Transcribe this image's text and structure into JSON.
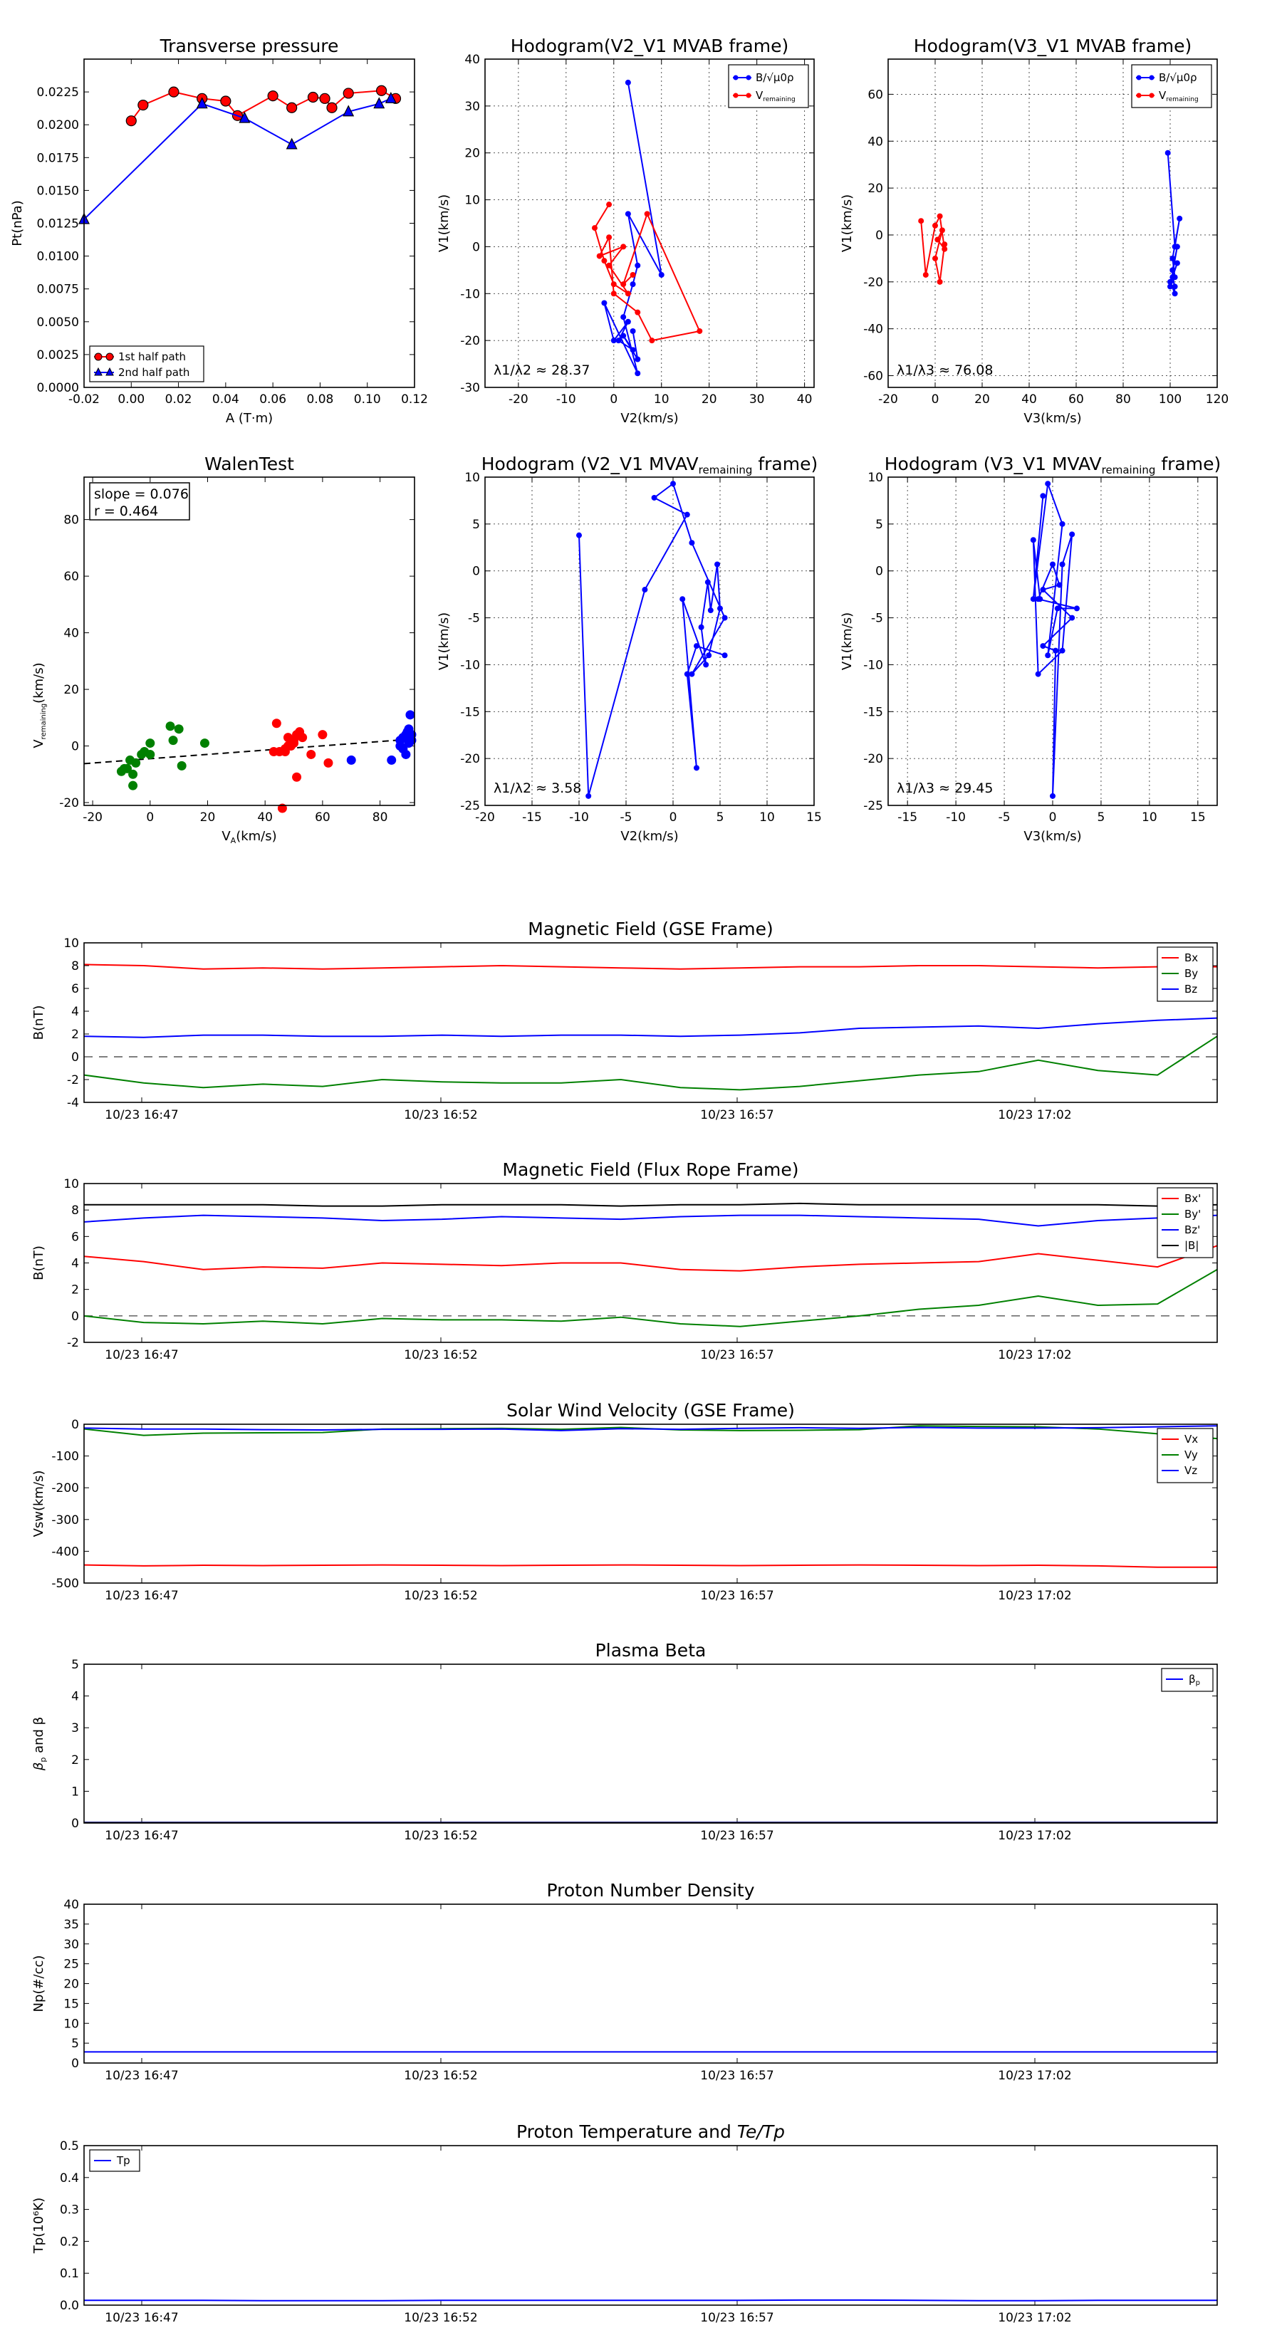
{
  "chart_data": [
    {
      "type": "scatter",
      "title": "Transverse pressure",
      "xlabel": "A (T·m)",
      "ylabel": "Pt(nPa)",
      "xlim": [
        -0.02,
        0.12
      ],
      "ylim": [
        0,
        0.025
      ],
      "xticks": [
        "-0.02",
        "0.00",
        "0.02",
        "0.04",
        "0.06",
        "0.08",
        "0.10",
        "0.12"
      ],
      "yticks": [
        "0.0000",
        "0.0025",
        "0.0050",
        "0.0075",
        "0.0100",
        "0.0125",
        "0.0150",
        "0.0175",
        "0.0200",
        "0.0225"
      ],
      "legend": "lower-left",
      "series": [
        {
          "name": "1st half path",
          "color": "#ff0000",
          "marker": "circle",
          "x": [
            0.0,
            0.005,
            0.018,
            0.03,
            0.04,
            0.045,
            0.06,
            0.068,
            0.077,
            0.082,
            0.085,
            0.092,
            0.106,
            0.112
          ],
          "y": [
            0.0203,
            0.0215,
            0.0225,
            0.022,
            0.0218,
            0.0207,
            0.0222,
            0.0213,
            0.0221,
            0.022,
            0.0213,
            0.0224,
            0.0226,
            0.022
          ]
        },
        {
          "name": "2nd half path",
          "color": "#0000ff",
          "marker": "triangle",
          "x": [
            -0.02,
            0.03,
            0.048,
            0.068,
            0.092,
            0.105,
            0.11
          ],
          "y": [
            0.0128,
            0.0216,
            0.0205,
            0.0185,
            0.021,
            0.0216,
            0.022
          ]
        }
      ]
    },
    {
      "type": "line",
      "title": "Hodogram(V2_V1 MVAB frame)",
      "xlabel": "V2(km/s)",
      "ylabel": "V1(km/s)",
      "xlim": [
        -27,
        42
      ],
      "ylim": [
        -30,
        40
      ],
      "xticks": [
        -20,
        -10,
        0,
        10,
        20,
        30,
        40
      ],
      "yticks": [
        -30,
        -20,
        -10,
        0,
        10,
        20,
        30,
        40
      ],
      "annotation": "λ1/λ2 ≈ 28.37",
      "legend": "top-right",
      "series": [
        {
          "name": "B/√μ0ρ",
          "color": "#0000ff",
          "x": [
            3,
            10,
            3,
            5,
            4,
            2,
            5,
            -2,
            0,
            3,
            1,
            4,
            2,
            5,
            4
          ],
          "y": [
            35,
            -6,
            7,
            -4,
            -8,
            -15,
            -27,
            -12,
            -20,
            -16,
            -20,
            -22,
            -19,
            -24,
            -18
          ]
        },
        {
          "name": "Vremaining",
          "color": "#ff0000",
          "x": [
            -1,
            -4,
            -2,
            0,
            3,
            -1,
            2,
            -3,
            -1,
            0,
            5,
            8,
            18,
            7,
            2,
            4
          ],
          "y": [
            9,
            4,
            -3,
            -8,
            -10,
            -4,
            0,
            -2,
            2,
            -10,
            -14,
            -20,
            -18,
            7,
            -8,
            -6
          ]
        }
      ]
    },
    {
      "type": "line",
      "title": "Hodogram(V3_V1 MVAB frame)",
      "xlabel": "V3(km/s)",
      "ylabel": "V1(km/s)",
      "xlim": [
        -20,
        120
      ],
      "ylim": [
        -65,
        75
      ],
      "xticks": [
        -20,
        0,
        20,
        40,
        60,
        80,
        100,
        120
      ],
      "yticks": [
        -60,
        -40,
        -20,
        0,
        20,
        40,
        60
      ],
      "annotation": "λ1/λ3 ≈ 76.08",
      "legend": "top-right",
      "series": [
        {
          "name": "B/√μ0ρ",
          "color": "#0000ff",
          "x": [
            99,
            102,
            104,
            101,
            102,
            100,
            103,
            101,
            102,
            100,
            103,
            101,
            102
          ],
          "y": [
            35,
            -5,
            7,
            -10,
            -18,
            -22,
            -5,
            -15,
            -25,
            -20,
            -12,
            -18,
            -22
          ]
        },
        {
          "name": "Vremaining",
          "color": "#ff0000",
          "x": [
            -6,
            -4,
            0,
            2,
            4,
            1,
            3,
            0,
            2,
            4
          ],
          "y": [
            6,
            -17,
            4,
            8,
            -6,
            -2,
            2,
            -10,
            -20,
            -4
          ]
        }
      ]
    },
    {
      "type": "scatter",
      "title": "WalenTest",
      "xlabel": "VA(km/s)",
      "ylabel": "Vremaining(km/s)",
      "xlim": [
        -23,
        92
      ],
      "ylim": [
        -21,
        95
      ],
      "xticks": [
        -20,
        0,
        20,
        40,
        60,
        80
      ],
      "yticks": [
        -20,
        0,
        20,
        40,
        60,
        80
      ],
      "annotation": [
        "slope = 0.076",
        "r = 0.464"
      ],
      "fit_line": {
        "slope": 0.076,
        "intercept": -4.5
      },
      "series": [
        {
          "color": "#008000",
          "x": [
            -10,
            -8,
            -6,
            -5,
            -7,
            -3,
            0,
            -2,
            -9,
            0,
            7,
            10,
            8,
            11,
            19,
            -6
          ],
          "y": [
            -9,
            -8,
            -10,
            -6,
            -5,
            -3,
            -3,
            -2,
            -8,
            1,
            7,
            6,
            2,
            -7,
            1,
            -14
          ]
        },
        {
          "color": "#ff0000",
          "x": [
            44,
            45,
            47,
            48,
            49,
            50,
            51,
            52,
            48,
            47,
            53,
            56,
            60,
            62,
            46,
            51,
            43,
            50,
            49
          ],
          "y": [
            8,
            -2,
            -1,
            0,
            1,
            2,
            4,
            5,
            3,
            -2,
            3,
            -3,
            4,
            -6,
            -22,
            -11,
            -2,
            1,
            0
          ]
        },
        {
          "color": "#0000ff",
          "x": [
            70,
            84,
            87,
            88,
            89,
            89.5,
            90,
            90.5,
            91,
            88,
            89,
            90,
            91,
            87
          ],
          "y": [
            -5,
            -5,
            2,
            3,
            4,
            5,
            6,
            11,
            2,
            -1,
            -3,
            1,
            4,
            0
          ]
        }
      ]
    },
    {
      "type": "line",
      "title": "Hodogram (V2_V1 MVAV",
      "title_sub": "remaining",
      "title_suffix": " frame)",
      "xlabel": "V2(km/s)",
      "ylabel": "V1(km/s)",
      "xlim": [
        -20,
        15
      ],
      "ylim": [
        -25,
        10
      ],
      "xticks": [
        -20,
        -15,
        -10,
        -5,
        0,
        5,
        10,
        15
      ],
      "yticks": [
        -25,
        -20,
        -15,
        -10,
        -5,
        0,
        5,
        10
      ],
      "annotation": "λ1/λ2 ≈ 3.58",
      "series": [
        {
          "color": "#0000ff",
          "x": [
            -10,
            -9,
            -3,
            1.5,
            -2,
            0,
            2,
            5.5,
            2,
            3.8,
            5,
            4.7,
            4,
            3.7,
            3,
            3.5,
            1,
            2.5,
            1.5,
            2.5,
            5.5
          ],
          "y": [
            3.8,
            -24,
            -2,
            6,
            7.8,
            9.3,
            3,
            -5,
            -11,
            -9,
            -4,
            0.7,
            -4.2,
            -1.2,
            -6,
            -10,
            -3,
            -21,
            -11,
            -8,
            -9
          ]
        }
      ]
    },
    {
      "type": "line",
      "title": "Hodogram (V3_V1 MVAV",
      "title_sub": "remaining",
      "title_suffix": " frame)",
      "xlabel": "V3(km/s)",
      "ylabel": "V1(km/s)",
      "xlim": [
        -17,
        17
      ],
      "ylim": [
        -25,
        10
      ],
      "xticks": [
        -15,
        -10,
        -5,
        0,
        5,
        10,
        15
      ],
      "yticks": [
        -25,
        -20,
        -15,
        -10,
        -5,
        0,
        5,
        10
      ],
      "annotation": "λ1/λ3 ≈ 29.45",
      "series": [
        {
          "color": "#0000ff",
          "x": [
            -1,
            -2,
            -0.5,
            1,
            -0.5,
            0.5,
            2.5,
            -1.5,
            0,
            0.7,
            -1,
            2,
            -1,
            0.3,
            0,
            1,
            2,
            1,
            -1.5,
            -2,
            -1.3
          ],
          "y": [
            8,
            -3,
            9.3,
            5,
            -9,
            -4,
            -4,
            -3,
            0.7,
            -1.5,
            -2,
            -5,
            -8,
            -8.5,
            -24,
            0.7,
            3.9,
            -8.5,
            -11,
            3.3,
            -3
          ]
        }
      ]
    },
    {
      "type": "line",
      "title": "Magnetic Field (GSE Frame)",
      "ylabel": "B(nT)",
      "ylim": [
        -4,
        10
      ],
      "yticks": [
        -4,
        -2,
        0,
        2,
        4,
        6,
        8,
        10
      ],
      "xticks": [
        "10/23 16:47",
        "10/23 16:52",
        "10/23 16:57",
        "10/23 17:02"
      ],
      "xlim_min": [
        0,
        19
      ],
      "legend": "top-right",
      "series": [
        {
          "name": "Bx",
          "color": "#ff0000",
          "values": [
            8.1,
            8.0,
            7.7,
            7.8,
            7.7,
            7.8,
            7.9,
            8.0,
            7.9,
            7.8,
            7.7,
            7.8,
            7.9,
            7.9,
            8.0,
            8.0,
            7.9,
            7.8,
            7.9,
            7.9
          ]
        },
        {
          "name": "By",
          "color": "#008000",
          "values": [
            -1.6,
            -2.3,
            -2.7,
            -2.4,
            -2.6,
            -2.0,
            -2.2,
            -2.3,
            -2.3,
            -2.0,
            -2.7,
            -2.9,
            -2.6,
            -2.1,
            -1.6,
            -1.3,
            -0.3,
            -1.2,
            -1.6,
            1.8
          ]
        },
        {
          "name": "Bz",
          "color": "#0000ff",
          "values": [
            1.8,
            1.7,
            1.9,
            1.9,
            1.8,
            1.8,
            1.9,
            1.8,
            1.9,
            1.9,
            1.8,
            1.9,
            2.1,
            2.5,
            2.6,
            2.7,
            2.5,
            2.9,
            3.2,
            3.4
          ]
        }
      ]
    },
    {
      "type": "line",
      "title": "Magnetic Field (Flux Rope Frame)",
      "ylabel": "B(nT)",
      "ylim": [
        -2,
        10
      ],
      "yticks": [
        -2,
        0,
        2,
        4,
        6,
        8,
        10
      ],
      "xticks": [
        "10/23 16:47",
        "10/23 16:52",
        "10/23 16:57",
        "10/23 17:02"
      ],
      "legend": "top-right",
      "series": [
        {
          "name": "Bx'",
          "color": "#ff0000",
          "values": [
            4.5,
            4.1,
            3.5,
            3.7,
            3.6,
            4.0,
            3.9,
            3.8,
            4.0,
            4.0,
            3.5,
            3.4,
            3.7,
            3.9,
            4.0,
            4.1,
            4.7,
            4.2,
            3.7,
            5.3
          ]
        },
        {
          "name": "By'",
          "color": "#008000",
          "values": [
            0.0,
            -0.5,
            -0.6,
            -0.4,
            -0.6,
            -0.2,
            -0.3,
            -0.3,
            -0.4,
            -0.1,
            -0.6,
            -0.8,
            -0.4,
            0.0,
            0.5,
            0.8,
            1.5,
            0.8,
            0.9,
            3.5
          ]
        },
        {
          "name": "Bz'",
          "color": "#0000ff",
          "values": [
            7.1,
            7.4,
            7.6,
            7.5,
            7.4,
            7.2,
            7.3,
            7.5,
            7.4,
            7.3,
            7.5,
            7.6,
            7.6,
            7.5,
            7.4,
            7.3,
            6.8,
            7.2,
            7.4,
            7.6
          ]
        },
        {
          "name": "|B|",
          "color": "#000000",
          "values": [
            8.4,
            8.4,
            8.4,
            8.4,
            8.3,
            8.3,
            8.4,
            8.4,
            8.4,
            8.3,
            8.4,
            8.4,
            8.5,
            8.4,
            8.4,
            8.4,
            8.4,
            8.4,
            8.3,
            8.4
          ]
        }
      ]
    },
    {
      "type": "line",
      "title": "Solar Wind Velocity (GSE Frame)",
      "ylabel": "Vsw(km/s)",
      "ylim": [
        -500,
        0
      ],
      "yticks": [
        -500,
        -400,
        -300,
        -200,
        -100,
        0
      ],
      "xticks": [
        "10/23 16:47",
        "10/23 16:52",
        "10/23 16:57",
        "10/23 17:02"
      ],
      "legend": "top-right",
      "series": [
        {
          "name": "Vx",
          "color": "#ff0000",
          "values": [
            -443,
            -446,
            -444,
            -445,
            -444,
            -443,
            -444,
            -445,
            -444,
            -443,
            -444,
            -445,
            -444,
            -443,
            -444,
            -445,
            -444,
            -446,
            -450,
            -450
          ]
        },
        {
          "name": "Vy",
          "color": "#008000",
          "values": [
            -15,
            -35,
            -28,
            -27,
            -26,
            -15,
            -14,
            -13,
            -16,
            -10,
            -18,
            -20,
            -19,
            -17,
            -5,
            -7,
            -8,
            -15,
            -30,
            -45
          ]
        },
        {
          "name": "Vz",
          "color": "#0000ff",
          "values": [
            -12,
            -15,
            -15,
            -17,
            -18,
            -16,
            -16,
            -15,
            -20,
            -14,
            -16,
            -13,
            -11,
            -13,
            -10,
            -12,
            -12,
            -11,
            -8,
            -5
          ]
        }
      ]
    },
    {
      "type": "line",
      "title": "Plasma Beta",
      "ylabel_main": "β",
      "ylabel_sub": "p",
      "ylabel_rest": " and β",
      "ylim": [
        0,
        5
      ],
      "yticks": [
        0,
        1,
        2,
        3,
        4,
        5
      ],
      "xticks": [
        "10/23 16:47",
        "10/23 16:52",
        "10/23 16:57",
        "10/23 17:02"
      ],
      "legend": "top-right",
      "series": [
        {
          "name": "β",
          "name_sub": "p",
          "color": "#0000ff",
          "values": [
            0.02,
            0.02,
            0.02,
            0.02,
            0.02,
            0.02,
            0.02,
            0.02,
            0.02,
            0.02,
            0.02,
            0.02,
            0.02,
            0.02,
            0.02,
            0.02,
            0.02,
            0.02,
            0.02,
            0.02
          ]
        },
        {
          "color": "#000000",
          "values": [
            0.01,
            0.01,
            0.01,
            0.01,
            0.01,
            0.01,
            0.01,
            0.01,
            0.01,
            0.01,
            0.01,
            0.01,
            0.01,
            0.01,
            0.01,
            0.01,
            0.01,
            0.01,
            0.01,
            0.01
          ]
        }
      ]
    },
    {
      "type": "line",
      "title": "Proton Number Density",
      "ylabel": "Np(#/cc)",
      "ylim": [
        0,
        40
      ],
      "yticks": [
        0,
        5,
        10,
        15,
        20,
        25,
        30,
        35,
        40
      ],
      "xticks": [
        "10/23 16:47",
        "10/23 16:52",
        "10/23 16:57",
        "10/23 17:02"
      ],
      "series": [
        {
          "color": "#0000ff",
          "values": [
            2.8,
            2.8,
            2.8,
            2.8,
            2.8,
            2.8,
            2.8,
            2.8,
            2.8,
            2.8,
            2.8,
            2.8,
            2.8,
            2.8,
            2.8,
            2.8,
            2.8,
            2.8,
            2.8,
            2.8
          ]
        }
      ]
    },
    {
      "type": "line",
      "title": "Proton Temperature and ",
      "title_math": "Te/Tp",
      "ylabel": "Tp(10⁶K)",
      "ylim": [
        0,
        0.5
      ],
      "yticks": [
        "0.0",
        "0.1",
        "0.2",
        "0.3",
        "0.4",
        "0.5"
      ],
      "xticks": [
        "10/23 16:47",
        "10/23 16:52",
        "10/23 16:57",
        "10/23 17:02"
      ],
      "legend": "top-left",
      "series": [
        {
          "name": "Tp",
          "color": "#0000ff",
          "values": [
            0.015,
            0.015,
            0.015,
            0.014,
            0.014,
            0.014,
            0.015,
            0.015,
            0.015,
            0.015,
            0.015,
            0.015,
            0.016,
            0.016,
            0.015,
            0.014,
            0.014,
            0.015,
            0.015,
            0.015
          ]
        }
      ]
    }
  ]
}
